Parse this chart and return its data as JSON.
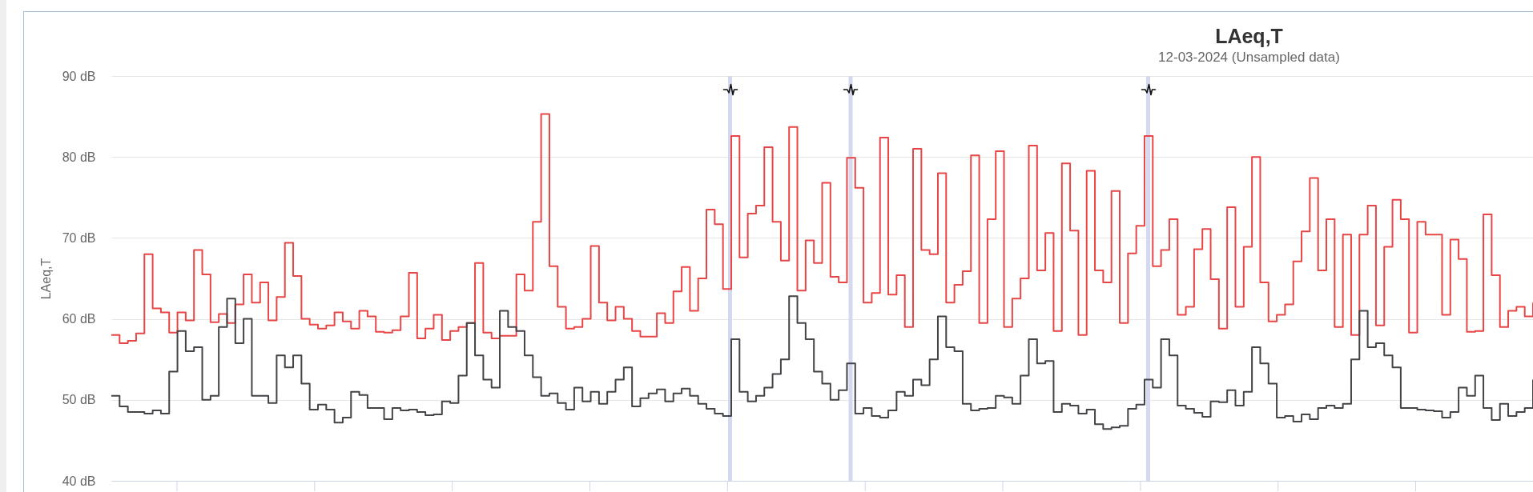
{
  "chart_data": {
    "type": "step",
    "title": "LAeq,T",
    "subtitle": "12-03-2024 (Unsampled data)",
    "ylabel": "LAeq,T",
    "categories": [
      null,
      null,
      null,
      null,
      null,
      null,
      null,
      null,
      null,
      null,
      null,
      null,
      null,
      null,
      null,
      null,
      null,
      null,
      null,
      null,
      null,
      null,
      null,
      null,
      null,
      null,
      null,
      null,
      null,
      null,
      null,
      null,
      null,
      null,
      null,
      null,
      null,
      null,
      null,
      null,
      null,
      null,
      null,
      null,
      null,
      null,
      null,
      null,
      null,
      null,
      null,
      null,
      null,
      null,
      null,
      null,
      null,
      null,
      null,
      null,
      null,
      null,
      null,
      null,
      null,
      null,
      null,
      null,
      null,
      null,
      null,
      null,
      null,
      null,
      null,
      null,
      null,
      null,
      null,
      null,
      null,
      null,
      null,
      null,
      null,
      null,
      null,
      null,
      null,
      null,
      null,
      null,
      null,
      null,
      null,
      null,
      null,
      null,
      null,
      null,
      null,
      null,
      null,
      null,
      null,
      null,
      null,
      null,
      null,
      null,
      null,
      null,
      null,
      null,
      null,
      null,
      null,
      null,
      null,
      null,
      null,
      null,
      null,
      null,
      null,
      null,
      null,
      null,
      null,
      null,
      null,
      null,
      null,
      null,
      null,
      null,
      null,
      null,
      null,
      null,
      null,
      null,
      null,
      null,
      null,
      null,
      null,
      null,
      null,
      null,
      null,
      null,
      null,
      null,
      null,
      null,
      null,
      null,
      null,
      null,
      null,
      null,
      null,
      null,
      null,
      null,
      null,
      null,
      null,
      null,
      null,
      null,
      null
    ],
    "series": [
      {
        "color": "#e84646",
        "values": [
          58.0,
          57.0,
          57.3,
          58.2,
          68.0,
          61.3,
          60.8,
          58.3,
          60.8,
          59.8,
          68.5,
          65.5,
          59.6,
          60.6,
          59.5,
          61.8,
          65.5,
          62.0,
          64.5,
          59.8,
          62.7,
          69.4,
          65.3,
          60.0,
          59.3,
          58.8,
          59.2,
          60.8,
          59.7,
          58.8,
          61.0,
          60.3,
          58.4,
          58.3,
          58.6,
          60.3,
          65.7,
          57.6,
          58.8,
          60.5,
          57.4,
          58.5,
          59.0,
          59.5,
          66.9,
          58.3,
          57.6,
          57.9,
          57.9,
          65.5,
          63.5,
          72.0,
          85.3,
          66.5,
          61.5,
          58.8,
          59.0,
          60.0,
          69.0,
          62.0,
          59.8,
          61.5,
          60.0,
          58.5,
          57.8,
          57.8,
          60.7,
          59.5,
          63.4,
          66.4,
          61.0,
          65.0,
          73.5,
          71.7,
          63.7,
          82.6,
          67.6,
          73.0,
          74.0,
          81.2,
          72.0,
          67.2,
          83.7,
          63.5,
          69.7,
          66.9,
          76.8,
          65.2,
          64.5,
          79.9,
          76.2,
          62.0,
          63.2,
          82.4,
          63.0,
          65.4,
          59.0,
          81.0,
          68.5,
          68.0,
          78.0,
          62.0,
          64.2,
          65.9,
          80.2,
          59.5,
          72.3,
          80.7,
          59.0,
          62.5,
          65.0,
          81.4,
          66.0,
          70.6,
          58.5,
          79.2,
          70.9,
          58.0,
          78.3,
          66.0,
          64.5,
          75.8,
          59.5,
          68.1,
          71.5,
          82.6,
          66.5,
          68.5,
          72.3,
          60.5,
          61.5,
          68.6,
          71.1,
          64.9,
          58.8,
          73.8,
          61.5,
          68.9,
          80.0,
          64.5,
          59.7,
          60.5,
          61.8,
          67.1,
          70.8,
          77.4,
          66.0,
          72.3,
          59.0,
          70.4,
          58.0,
          70.4,
          74.0,
          59.2,
          68.9,
          74.7,
          72.3,
          58.3,
          72.0,
          70.4,
          70.4,
          60.5,
          69.8,
          67.4,
          58.4,
          58.5,
          72.9,
          65.4,
          59.0,
          61.0,
          61.5,
          60.3,
          62.0
        ]
      },
      {
        "color": "#434348",
        "values": [
          50.5,
          49.2,
          48.5,
          48.5,
          48.3,
          48.7,
          48.3,
          53.5,
          58.5,
          56.0,
          56.5,
          50.0,
          50.5,
          59.0,
          62.5,
          57.0,
          60.0,
          50.5,
          50.5,
          49.6,
          55.5,
          54.0,
          55.5,
          52.0,
          48.8,
          49.4,
          48.8,
          47.2,
          47.8,
          51.0,
          50.6,
          49.0,
          49.0,
          47.6,
          49.0,
          48.7,
          48.8,
          48.5,
          48.1,
          48.2,
          49.8,
          49.6,
          53.0,
          59.5,
          55.5,
          52.5,
          51.5,
          61.0,
          59.0,
          58.5,
          55.5,
          52.8,
          50.5,
          50.8,
          49.6,
          48.8,
          51.5,
          49.8,
          51.0,
          49.5,
          51.0,
          52.5,
          54.0,
          49.2,
          50.2,
          50.8,
          51.3,
          49.8,
          50.8,
          51.4,
          50.5,
          49.5,
          48.9,
          48.3,
          48.0,
          57.5,
          51.0,
          49.8,
          50.5,
          51.5,
          53.2,
          55.0,
          62.8,
          59.5,
          57.5,
          53.5,
          52.0,
          50.0,
          51.2,
          54.5,
          48.3,
          49.0,
          48.0,
          47.8,
          48.7,
          51.0,
          50.5,
          52.5,
          51.8,
          55.0,
          60.3,
          56.5,
          56.0,
          49.5,
          48.7,
          48.9,
          49.0,
          50.5,
          50.3,
          49.5,
          53.0,
          57.5,
          54.5,
          54.8,
          48.5,
          49.5,
          49.3,
          48.3,
          48.8,
          47.0,
          46.4,
          46.6,
          46.8,
          48.9,
          49.4,
          52.5,
          51.5,
          57.5,
          55.5,
          49.3,
          48.9,
          48.4,
          47.9,
          49.8,
          49.7,
          51.2,
          49.3,
          51.0,
          56.5,
          54.5,
          52.0,
          47.8,
          48.0,
          47.3,
          48.2,
          47.6,
          49.0,
          49.3,
          49.0,
          49.5,
          55.0,
          61.0,
          56.5,
          57.0,
          55.5,
          54.0,
          49.0,
          49.0,
          48.8,
          48.7,
          48.6,
          47.8,
          48.5,
          51.5,
          50.5,
          53.0,
          49.0,
          47.5,
          49.5,
          48.0,
          48.5,
          49.0,
          52.5
        ]
      }
    ],
    "ylim": [
      40,
      90
    ],
    "yticks": [
      {
        "value": 40,
        "label": "40 dB"
      },
      {
        "value": 50,
        "label": "50 dB"
      },
      {
        "value": 60,
        "label": "60 dB"
      },
      {
        "value": 70,
        "label": "70 dB"
      },
      {
        "value": 80,
        "label": "80 dB"
      },
      {
        "value": 90,
        "label": "90 dB"
      }
    ],
    "grid": "y",
    "tick_labels": "y"
  }
}
